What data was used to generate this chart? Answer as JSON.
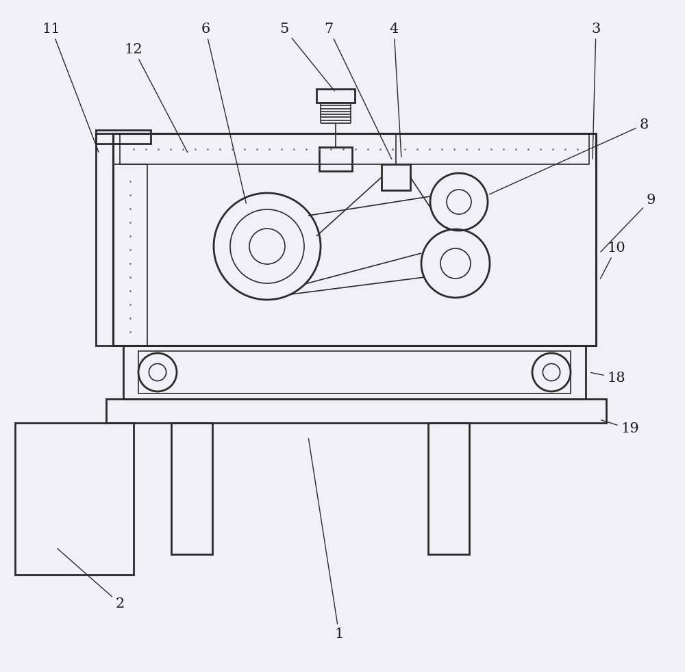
{
  "bg_color": "#f0f0f0",
  "line_color": "#2a2a2a",
  "lw_main": 1.8,
  "lw_thin": 1.0,
  "label_fontsize": 15,
  "label_color": "#1a1a1a"
}
